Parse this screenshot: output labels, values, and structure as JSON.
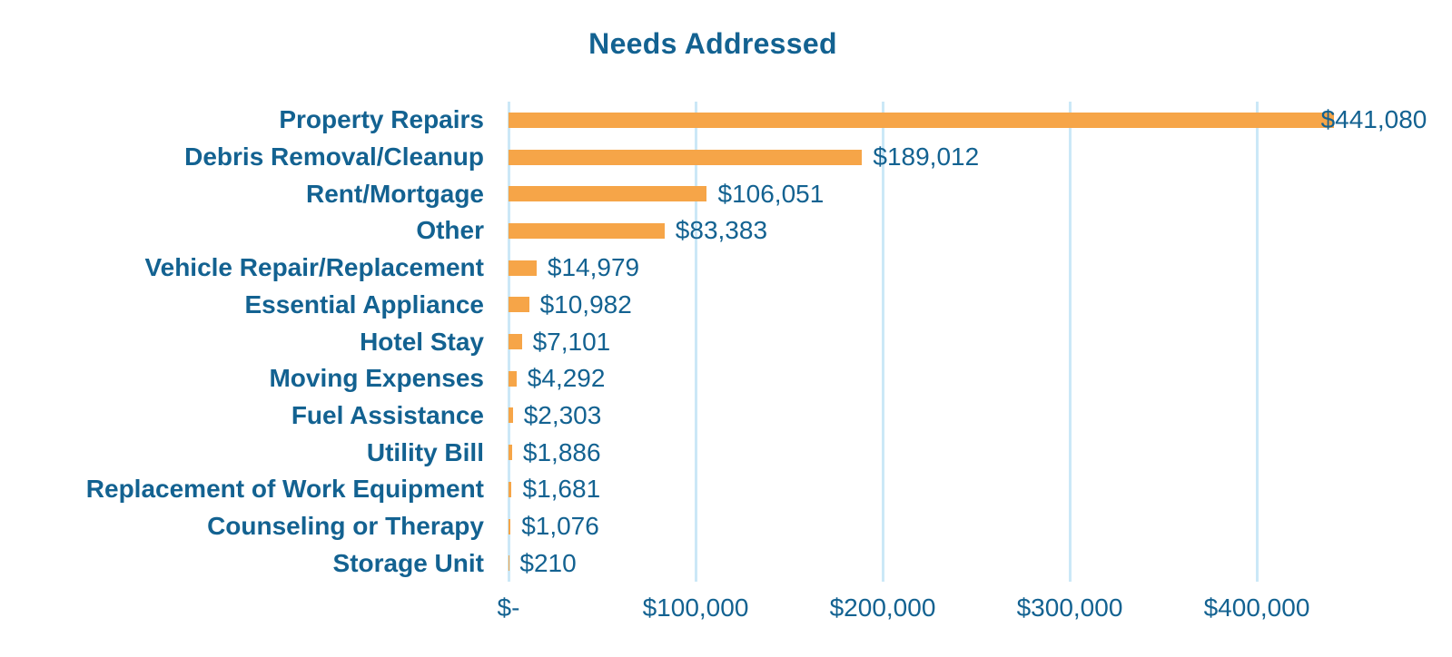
{
  "colors": {
    "bar_orange": "#F6A548",
    "text_blue": "#136291",
    "gridline_blue": "#CBE8F7",
    "background": "#FFFFFF"
  },
  "chart_data": {
    "type": "bar",
    "orientation": "horizontal",
    "title": "Needs Addressed",
    "categories": [
      "Property Repairs",
      "Debris Removal/Cleanup",
      "Rent/Mortgage",
      "Other",
      "Vehicle Repair/Replacement",
      "Essential Appliance",
      "Hotel Stay",
      "Moving Expenses",
      "Fuel Assistance",
      "Utility Bill",
      "Replacement of Work Equipment",
      "Counseling or Therapy",
      "Storage Unit"
    ],
    "values": [
      441080,
      189012,
      106051,
      83383,
      14979,
      10982,
      7101,
      4292,
      2303,
      1886,
      1681,
      1076,
      210
    ],
    "value_labels": [
      "$441,080",
      "$189,012",
      "$106,051",
      "$83,383",
      "$14,979",
      "$10,982",
      "$7,101",
      "$4,292",
      "$2,303",
      "$1,886",
      "$1,681",
      "$1,076",
      "$210"
    ],
    "x_ticks": [
      {
        "label": "$-",
        "value": 0
      },
      {
        "label": "$100,000",
        "value": 100000
      },
      {
        "label": "$200,000",
        "value": 200000
      },
      {
        "label": "$300,000",
        "value": 300000
      },
      {
        "label": "$400,000",
        "value": 400000
      }
    ],
    "xlim": [
      0,
      485000
    ],
    "grid": true,
    "legend": false
  }
}
